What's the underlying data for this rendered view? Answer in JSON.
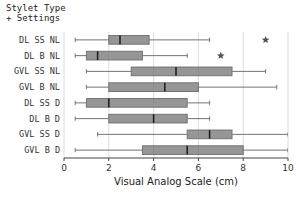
{
  "chart_data": {
    "type": "box",
    "orientation": "horizontal",
    "ylabel": "Stylet Type\n+ Settings",
    "xlabel": "Visual Analog Scale (cm)",
    "xlim": [
      0,
      10
    ],
    "xticks": [
      0,
      2,
      4,
      6,
      8,
      10
    ],
    "grid": true,
    "color": "#737373",
    "marker": "star",
    "categories": [
      "DL SS NL",
      "DL B NL",
      "GVL SS NL",
      "GVL B NL",
      "DL SS D",
      "DL B D",
      "GVL SS D",
      "GVL B D"
    ],
    "values": [
      {
        "whislo": 0.5,
        "q1": 2.0,
        "med": 2.5,
        "q3": 3.8,
        "whishi": 6.5,
        "fliers": [
          9.0
        ]
      },
      {
        "whislo": 0.5,
        "q1": 1.0,
        "med": 1.5,
        "q3": 3.5,
        "whishi": 5.5,
        "fliers": [
          7.0
        ]
      },
      {
        "whislo": 1.0,
        "q1": 3.0,
        "med": 5.0,
        "q3": 7.5,
        "whishi": 9.0,
        "fliers": []
      },
      {
        "whislo": 1.0,
        "q1": 2.0,
        "med": 4.5,
        "q3": 6.0,
        "whishi": 9.5,
        "fliers": []
      },
      {
        "whislo": 0.5,
        "q1": 1.0,
        "med": 2.0,
        "q3": 5.5,
        "whishi": 6.5,
        "fliers": []
      },
      {
        "whislo": 0.5,
        "q1": 2.0,
        "med": 4.0,
        "q3": 5.5,
        "whishi": 6.5,
        "fliers": []
      },
      {
        "whislo": 1.5,
        "q1": 5.5,
        "med": 6.5,
        "q3": 7.5,
        "whishi": 10.0,
        "fliers": []
      },
      {
        "whislo": 0.5,
        "q1": 3.5,
        "med": 5.5,
        "q3": 8.0,
        "whishi": 10.0,
        "fliers": []
      }
    ]
  }
}
